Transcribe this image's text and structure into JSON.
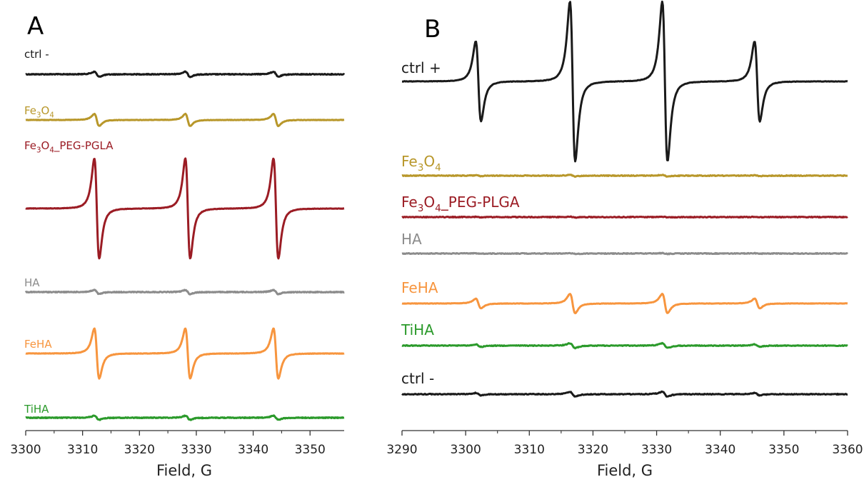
{
  "chart_data": [
    {
      "type": "line",
      "panel": "A",
      "xlabel": "Field, G",
      "xlim": [
        3300,
        3356
      ],
      "xticks": [
        3300,
        3310,
        3320,
        3330,
        3340,
        3350
      ],
      "x_tick_labels": [
        "3300",
        "3310",
        "3320",
        "3330",
        "3340",
        "3350"
      ],
      "y_tick_labels": false,
      "line_peaks_G": [
        3312.5,
        3328.5,
        3344.0
      ],
      "series": [
        {
          "name": "ctrl -",
          "label_parts": [
            {
              "t": "ctrl -"
            }
          ],
          "color": "#1a1a1a",
          "relative_amplitude": 0.05
        },
        {
          "name": "Fe3O4",
          "label_parts": [
            {
              "t": "Fe"
            },
            {
              "t": "3",
              "sub": true
            },
            {
              "t": "O"
            },
            {
              "t": "4",
              "sub": true
            }
          ],
          "color": "#b8972a",
          "relative_amplitude": 0.12
        },
        {
          "name": "Fe3O4_PEG-PGLA",
          "label_parts": [
            {
              "t": "Fe"
            },
            {
              "t": "3",
              "sub": true
            },
            {
              "t": "O"
            },
            {
              "t": "4",
              "sub": true
            },
            {
              "t": "_PEG-PGLA"
            }
          ],
          "color": "#9b1c24",
          "relative_amplitude": 1.0
        },
        {
          "name": "HA",
          "label_parts": [
            {
              "t": "HA"
            }
          ],
          "color": "#8c8c8c",
          "relative_amplitude": 0.04
        },
        {
          "name": "FeHA",
          "label_parts": [
            {
              "t": "FeHA"
            }
          ],
          "color": "#f7953e",
          "relative_amplitude": 0.5
        },
        {
          "name": "TiHA",
          "label_parts": [
            {
              "t": "TiHA"
            }
          ],
          "color": "#2b9a2b",
          "relative_amplitude": 0.04
        }
      ]
    },
    {
      "type": "line",
      "panel": "B",
      "xlabel": "Field, G",
      "xlim": [
        3290,
        3360
      ],
      "xticks": [
        3290,
        3300,
        3310,
        3320,
        3330,
        3340,
        3350,
        3360
      ],
      "x_tick_labels": [
        "3290",
        "3300",
        "3310",
        "3320",
        "3330",
        "3340",
        "3350",
        "3360"
      ],
      "y_tick_labels": false,
      "line_peaks_G": [
        3302.0,
        3316.8,
        3331.3,
        3345.8
      ],
      "line_intensity_ratio": [
        1,
        2,
        2,
        1
      ],
      "series": [
        {
          "name": "ctrl +",
          "label_parts": [
            {
              "t": "ctrl +"
            }
          ],
          "color": "#1a1a1a",
          "relative_amplitude": 1.0
        },
        {
          "name": "Fe3O4",
          "label_parts": [
            {
              "t": "Fe"
            },
            {
              "t": "3",
              "sub": true
            },
            {
              "t": "O"
            },
            {
              "t": "4",
              "sub": true
            }
          ],
          "color": "#b8972a",
          "relative_amplitude": 0.01
        },
        {
          "name": "Fe3O4_PEG-PLGA",
          "label_parts": [
            {
              "t": "Fe"
            },
            {
              "t": "3",
              "sub": true
            },
            {
              "t": "O"
            },
            {
              "t": "4",
              "sub": true
            },
            {
              "t": "_PEG-PLGA"
            }
          ],
          "color": "#9b1c24",
          "relative_amplitude": 0.005
        },
        {
          "name": "HA",
          "label_parts": [
            {
              "t": "HA"
            }
          ],
          "color": "#8c8c8c",
          "relative_amplitude": 0.005
        },
        {
          "name": "FeHA",
          "label_parts": [
            {
              "t": "FeHA"
            }
          ],
          "color": "#f7953e",
          "relative_amplitude": 0.12
        },
        {
          "name": "TiHA",
          "label_parts": [
            {
              "t": "TiHA"
            }
          ],
          "color": "#2b9a2b",
          "relative_amplitude": 0.03
        },
        {
          "name": "ctrl -",
          "label_parts": [
            {
              "t": "ctrl -"
            }
          ],
          "color": "#1a1a1a",
          "relative_amplitude": 0.03
        }
      ]
    }
  ]
}
